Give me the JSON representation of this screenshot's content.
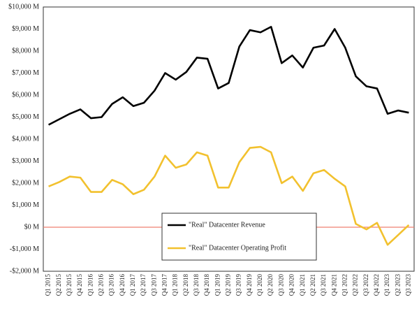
{
  "chart_data": {
    "type": "line",
    "categories": [
      "Q1 2015",
      "Q2 2015",
      "Q3 2015",
      "Q4 2015",
      "Q1 2016",
      "Q2 2016",
      "Q3 2016",
      "Q4 2016",
      "Q1 2017",
      "Q2 2017",
      "Q3 2017",
      "Q4 2017",
      "Q1 2018",
      "Q2 2018",
      "Q3 2018",
      "Q4 2018",
      "Q1 2019",
      "Q2 2019",
      "Q3 2019",
      "Q4 2019",
      "Q1 2020",
      "Q2 2020",
      "Q3 2020",
      "Q4 2020",
      "Q1 2021",
      "Q2 2021",
      "Q3 2021",
      "Q4 2021",
      "Q1 2022",
      "Q2 2022",
      "Q3 2022",
      "Q4 2022",
      "Q1 2023",
      "Q2 2023",
      "Q3 2023"
    ],
    "series": [
      {
        "name": "\"Real\" Datacenter Revenue",
        "color": "#000000",
        "values": [
          4650,
          4900,
          5150,
          5350,
          4950,
          5000,
          5600,
          5900,
          5500,
          5650,
          6200,
          7000,
          6700,
          7050,
          7700,
          7650,
          6300,
          6550,
          8200,
          8950,
          8850,
          9100,
          7450,
          7800,
          7250,
          8150,
          8250,
          9000,
          8150,
          6850,
          6400,
          6300,
          5150,
          5300,
          5200
        ]
      },
      {
        "name": "\"Real\" Datacenter Operating Profit",
        "color": "#f2c12e",
        "values": [
          1850,
          2050,
          2300,
          2250,
          1600,
          1600,
          2150,
          1950,
          1500,
          1700,
          2300,
          3250,
          2700,
          2850,
          3400,
          3250,
          1800,
          1800,
          2950,
          3600,
          3650,
          3400,
          2000,
          2300,
          1650,
          2450,
          2600,
          2200,
          1850,
          150,
          -100,
          200,
          -800,
          -350,
          100
        ]
      }
    ],
    "ylim": [
      -2000,
      10000
    ],
    "yticks": [
      {
        "value": -2000,
        "label": "-$2,000 M"
      },
      {
        "value": -1000,
        "label": "-$1,000 M"
      },
      {
        "value": 0,
        "label": "$0 M"
      },
      {
        "value": 1000,
        "label": "$1,000 M"
      },
      {
        "value": 2000,
        "label": "$2,000 M"
      },
      {
        "value": 3000,
        "label": "$3,000 M"
      },
      {
        "value": 4000,
        "label": "$4,000 M"
      },
      {
        "value": 5000,
        "label": "$5,000 M"
      },
      {
        "value": 6000,
        "label": "$6,000 M"
      },
      {
        "value": 7000,
        "label": "$7,000 M"
      },
      {
        "value": 8000,
        "label": "$8,000 M"
      },
      {
        "value": 9000,
        "label": "$9,000 M"
      },
      {
        "value": 10000,
        "label": "$10,000 M"
      }
    ],
    "zero_line_color": "#f08070",
    "legend": "bottom-center"
  }
}
